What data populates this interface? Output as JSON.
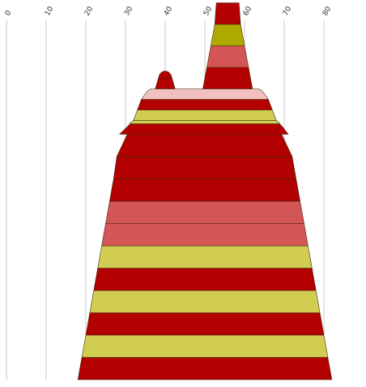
{
  "chart_data": {
    "type": "area",
    "description_of_axis": "horizontal value axis, ticks printed at top, rotated",
    "x_ticks": [
      0,
      10,
      20,
      30,
      40,
      50,
      60,
      70,
      80
    ],
    "xlim": [
      0,
      80
    ],
    "grid": true,
    "colors": {
      "dark_red": "#b30000",
      "salmon": "#d45555",
      "olive": "#b0aa00",
      "yellow_green": "#d1cc52",
      "pink": "#f2c0c0",
      "outline": "#3a2a10",
      "gridline": "#c8c8c8"
    },
    "main_bands": [
      {
        "left": 18.0,
        "right": 82.0,
        "color": "dark_red"
      },
      {
        "left": 19.0,
        "right": 81.0,
        "color": "yellow_green"
      },
      {
        "left": 20.0,
        "right": 80.0,
        "color": "dark_red"
      },
      {
        "left": 21.0,
        "right": 79.0,
        "color": "yellow_green"
      },
      {
        "left": 22.0,
        "right": 78.0,
        "color": "dark_red"
      },
      {
        "left": 23.0,
        "right": 77.0,
        "color": "yellow_green"
      },
      {
        "left": 24.0,
        "right": 76.0,
        "color": "salmon"
      },
      {
        "left": 25.0,
        "right": 75.0,
        "color": "salmon"
      },
      {
        "left": 26.0,
        "right": 74.0,
        "color": "dark_red"
      },
      {
        "left": 27.0,
        "right": 73.0,
        "color": "dark_red"
      },
      {
        "left": 27.8,
        "right": 72.0,
        "color": "dark_red"
      }
    ],
    "upper_stack": [
      {
        "left": 28.5,
        "right": 71.0,
        "color": "dark_red",
        "rounded": true
      },
      {
        "left": 31.0,
        "right": 69.0,
        "color": "yellow_green",
        "thin": true
      },
      {
        "left": 32.0,
        "right": 68.0,
        "color": "yellow_green"
      },
      {
        "left": 33.0,
        "right": 67.0,
        "color": "dark_red"
      },
      {
        "left": 34.0,
        "right": 66.0,
        "color": "pink",
        "rounded": true
      }
    ],
    "left_peak": [
      {
        "left": 37.5,
        "right": 42.5,
        "color": "dark_red",
        "rounded": true
      }
    ],
    "right_peak": [
      {
        "left": 49.5,
        "right": 62.0,
        "color": "dark_red"
      },
      {
        "left": 50.5,
        "right": 61.0,
        "color": "salmon"
      },
      {
        "left": 51.5,
        "right": 60.0,
        "color": "olive"
      },
      {
        "left": 52.5,
        "right": 59.0,
        "color": "dark_red"
      }
    ]
  }
}
